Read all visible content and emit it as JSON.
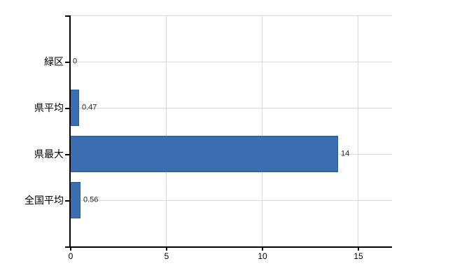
{
  "chart_data": {
    "type": "bar",
    "orientation": "horizontal",
    "title": "",
    "xlabel": "",
    "ylabel": "",
    "categories": [
      "緑区",
      "県平均",
      "県最大",
      "全国平均"
    ],
    "values": [
      0,
      0.47,
      14,
      0.56
    ],
    "value_labels": [
      "0",
      "0.47",
      "14",
      "0.56"
    ],
    "xticks": [
      0,
      5,
      10,
      15
    ],
    "xtick_labels": [
      "0",
      "5",
      "10",
      "15"
    ],
    "xlim": [
      0,
      16.8
    ],
    "grid": true,
    "legend": false,
    "colors": {
      "bar_fill": "#3c6db1",
      "bar_border": "#2d5a94",
      "gridline": "#d9d9d9",
      "axis": "#000000",
      "value_text": "#262626",
      "label_text": "#000000",
      "background": "#ffffff"
    }
  }
}
